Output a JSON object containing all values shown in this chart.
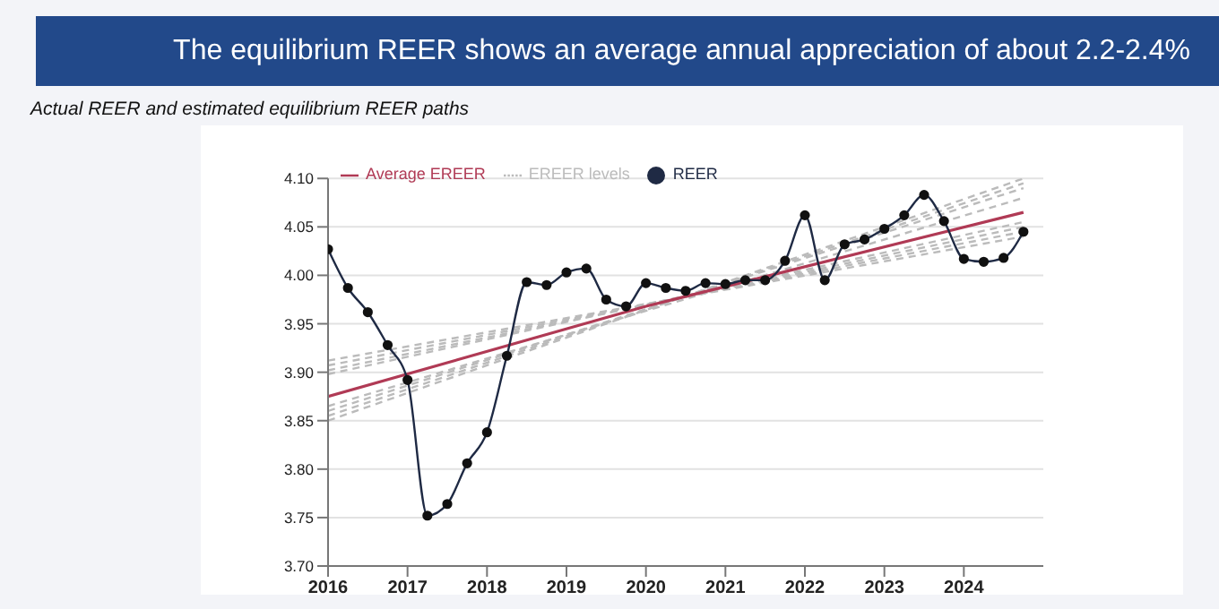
{
  "chart_data": {
    "type": "line",
    "title": "The equilibrium REER shows an average annual appreciation of about 2.2-2.4%",
    "subtitle": "Actual REER and estimated equilibrium REER paths",
    "xlim": [
      2016,
      2025
    ],
    "xticks": [
      2016,
      2017,
      2018,
      2019,
      2020,
      2021,
      2022,
      2023,
      2024
    ],
    "ylim": [
      3.7,
      4.1
    ],
    "yticks": [
      {
        "value": 3.7,
        "label": "3.70"
      },
      3.75,
      {
        "value": 3.8,
        "label": "3.80"
      },
      3.85,
      {
        "value": 3.9,
        "label": "3.90"
      },
      3.95,
      {
        "value": 4.0,
        "label": "4.00"
      },
      4.05,
      {
        "value": 4.1,
        "label": "4.10"
      }
    ],
    "grid": "y",
    "legend": "top left",
    "series": [
      {
        "name": "EREER levels",
        "color": "#bbbbbb",
        "line_style": "dashed",
        "x": [
          2016,
          2024.75
        ],
        "values": [
          3.912,
          4.04
        ]
      },
      {
        "color": "#bbbbbb",
        "line_style": "dashed",
        "x": [
          2016,
          2024.75
        ],
        "values": [
          3.907,
          4.045
        ]
      },
      {
        "color": "#bbbbbb",
        "line_style": "dashed",
        "x": [
          2016,
          2024.75
        ],
        "values": [
          3.902,
          4.05
        ]
      },
      {
        "color": "#bbbbbb",
        "line_style": "dashed",
        "x": [
          2016,
          2024.75
        ],
        "values": [
          3.898,
          4.055
        ]
      },
      {
        "color": "#bbbbbb",
        "line_style": "dashed",
        "x": [
          2016,
          2024.75
        ],
        "values": [
          3.865,
          4.08
        ]
      },
      {
        "color": "#bbbbbb",
        "line_style": "dashed",
        "x": [
          2016,
          2024.75
        ],
        "values": [
          3.86,
          4.09
        ]
      },
      {
        "color": "#bbbbbb",
        "line_style": "dashed",
        "x": [
          2016,
          2024.75
        ],
        "values": [
          3.855,
          4.095
        ]
      },
      {
        "color": "#bbbbbb",
        "line_style": "dashed",
        "x": [
          2016,
          2024.75
        ],
        "values": [
          3.85,
          4.1
        ]
      },
      {
        "name": "Average EREER",
        "color": "#b03a55",
        "line_style": "solid",
        "x": [
          2016,
          2020,
          2024.75
        ],
        "values": [
          3.875,
          3.968,
          4.065
        ]
      },
      {
        "name": "REER",
        "color": "#1f2a44",
        "line_style": "solid",
        "marker": "circle",
        "x": [
          2016,
          2016.25,
          2016.5,
          2016.75,
          2017,
          2017.25,
          2017.5,
          2017.75,
          2018,
          2018.25,
          2018.5,
          2018.75,
          2019,
          2019.25,
          2019.5,
          2019.75,
          2020,
          2020.25,
          2020.5,
          2020.75,
          2021,
          2021.25,
          2021.5,
          2021.75,
          2022,
          2022.25,
          2022.5,
          2022.75,
          2023,
          2023.25,
          2023.5,
          2023.75,
          2024,
          2024.25,
          2024.5,
          2024.75
        ],
        "values": [
          4.027,
          3.987,
          3.962,
          3.928,
          3.892,
          3.752,
          3.764,
          3.806,
          3.838,
          3.917,
          3.993,
          3.99,
          4.003,
          4.007,
          3.975,
          3.968,
          3.992,
          3.987,
          3.984,
          3.992,
          3.991,
          3.995,
          3.995,
          4.015,
          4.062,
          3.995,
          4.032,
          4.037,
          4.048,
          4.062,
          4.083,
          4.056,
          4.017,
          4.014,
          4.018,
          4.045
        ]
      }
    ]
  }
}
